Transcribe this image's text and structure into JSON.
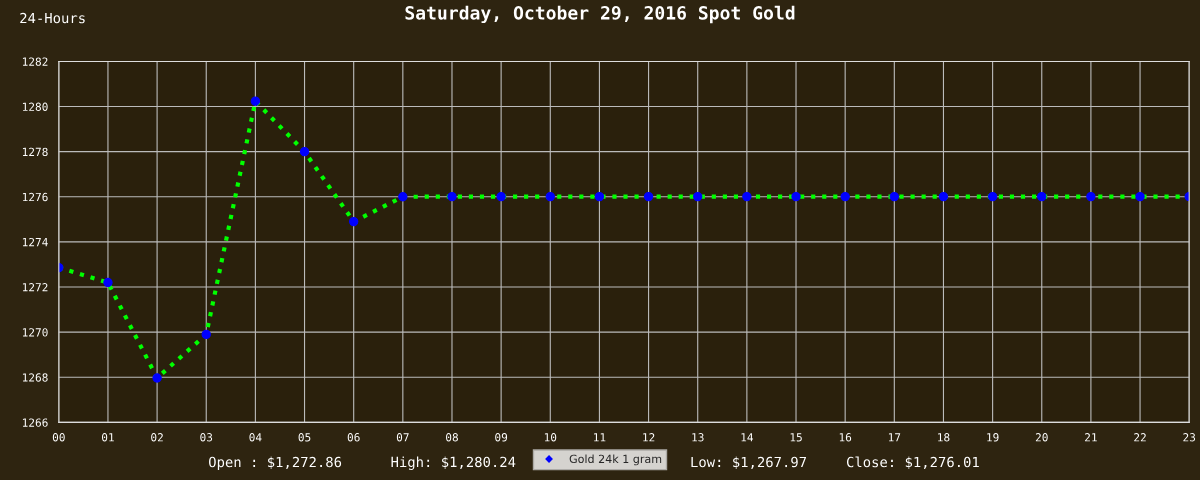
{
  "chart_data": {
    "type": "line",
    "title": "Saturday, October 29, 2016 Spot Gold",
    "categories": [
      "00",
      "01",
      "02",
      "03",
      "04",
      "05",
      "06",
      "07",
      "08",
      "09",
      "10",
      "11",
      "12",
      "13",
      "14",
      "15",
      "16",
      "17",
      "18",
      "19",
      "20",
      "21",
      "22",
      "23"
    ],
    "series": [
      {
        "name": "Gold 24k 1 gram",
        "color": "#00ff00",
        "values": [
          1272.86,
          1272.2,
          1267.97,
          1269.9,
          1280.24,
          1278.0,
          1274.9,
          1276.0,
          1276.01,
          1276.01,
          1276.01,
          1276.01,
          1276.01,
          1276.01,
          1276.01,
          1276.01,
          1276.01,
          1276.01,
          1276.01,
          1276.01,
          1276.01,
          1276.01,
          1276.01,
          1276.01
        ]
      }
    ],
    "ylim": [
      1266,
      1282
    ],
    "yticks": [
      1266,
      1268,
      1270,
      1272,
      1274,
      1276,
      1278,
      1280,
      1282
    ],
    "grid": true,
    "legend": "bottom",
    "marker": "circle",
    "line_style": "dotted",
    "annotations": [
      "24-Hours",
      "Open : $1,272.86",
      "High: $1,280.24",
      "Low: $1,267.97",
      "Close: $1,276.01"
    ]
  }
}
